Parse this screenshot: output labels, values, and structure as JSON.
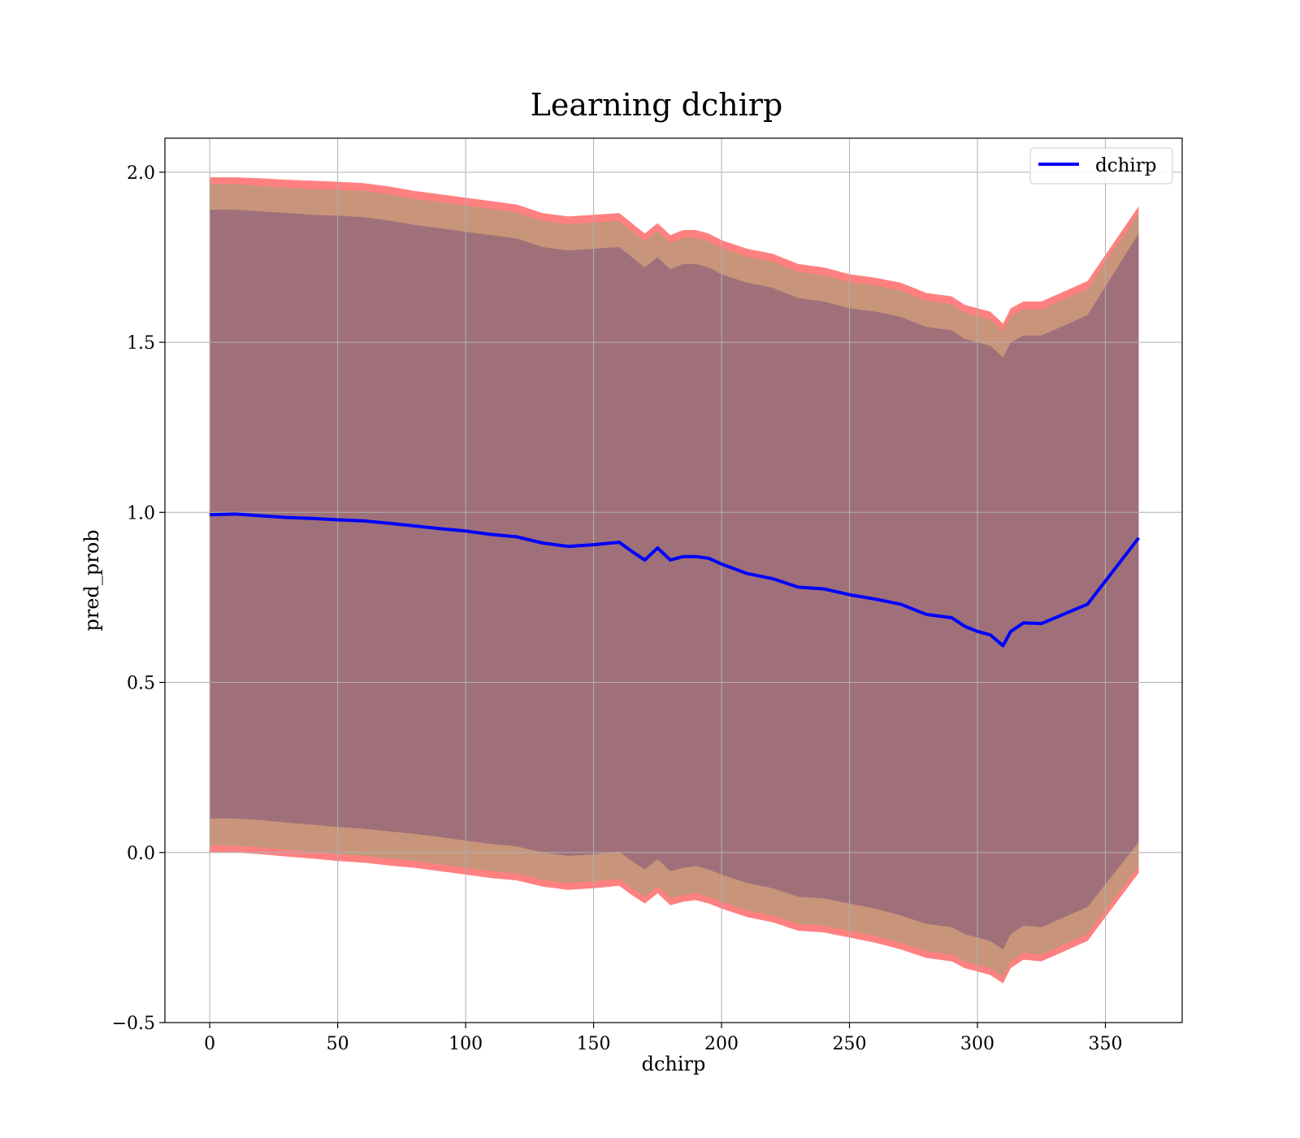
{
  "chart_data": {
    "type": "line",
    "title": "Learning dchirp",
    "xlabel": "dchirp",
    "ylabel": "pred_prob",
    "xlim": [
      -17.5,
      380
    ],
    "ylim": [
      -0.5,
      2.1
    ],
    "xticks": [
      0,
      50,
      100,
      150,
      200,
      250,
      300,
      350
    ],
    "yticks": [
      -0.5,
      0.0,
      0.5,
      1.0,
      1.5,
      2.0
    ],
    "xtick_labels": [
      "0",
      "50",
      "100",
      "150",
      "200",
      "250",
      "300",
      "350"
    ],
    "ytick_labels": [
      "−0.5",
      "0.0",
      "0.5",
      "1.0",
      "1.5",
      "2.0"
    ],
    "grid": true,
    "legend": {
      "placement": "top-right",
      "entries": [
        "dchirp"
      ]
    },
    "series": [
      {
        "name": "dchirp",
        "color": "#0000ff",
        "x": [
          0,
          10,
          20,
          30,
          40,
          50,
          60,
          70,
          80,
          90,
          100,
          110,
          120,
          130,
          140,
          150,
          160,
          165,
          170,
          175,
          180,
          185,
          190,
          195,
          200,
          210,
          220,
          230,
          240,
          250,
          260,
          270,
          280,
          290,
          295,
          300,
          305,
          310,
          313,
          318,
          325,
          343,
          363
        ],
        "y": [
          0.993,
          0.995,
          0.99,
          0.985,
          0.982,
          0.978,
          0.975,
          0.968,
          0.96,
          0.952,
          0.945,
          0.935,
          0.928,
          0.91,
          0.9,
          0.905,
          0.912,
          0.885,
          0.86,
          0.895,
          0.86,
          0.87,
          0.87,
          0.865,
          0.848,
          0.82,
          0.805,
          0.78,
          0.775,
          0.758,
          0.745,
          0.73,
          0.7,
          0.69,
          0.665,
          0.65,
          0.64,
          0.608,
          0.65,
          0.675,
          0.673,
          0.73,
          0.925
        ]
      }
    ],
    "bands": [
      {
        "name": "outer",
        "color": "#ff8080",
        "upper": [
          1.985,
          1.985,
          1.982,
          1.978,
          1.975,
          1.972,
          1.968,
          1.958,
          1.945,
          1.935,
          1.925,
          1.915,
          1.905,
          1.88,
          1.87,
          1.875,
          1.88,
          1.85,
          1.82,
          1.85,
          1.815,
          1.83,
          1.83,
          1.82,
          1.8,
          1.775,
          1.76,
          1.73,
          1.72,
          1.7,
          1.69,
          1.675,
          1.645,
          1.635,
          1.61,
          1.6,
          1.59,
          1.555,
          1.6,
          1.62,
          1.62,
          1.68,
          1.9
        ],
        "lower": [
          0.0,
          0.0,
          -0.005,
          -0.012,
          -0.018,
          -0.025,
          -0.03,
          -0.038,
          -0.045,
          -0.055,
          -0.065,
          -0.075,
          -0.082,
          -0.1,
          -0.11,
          -0.105,
          -0.098,
          -0.125,
          -0.15,
          -0.12,
          -0.155,
          -0.145,
          -0.14,
          -0.15,
          -0.165,
          -0.19,
          -0.205,
          -0.23,
          -0.235,
          -0.25,
          -0.265,
          -0.285,
          -0.31,
          -0.32,
          -0.34,
          -0.35,
          -0.36,
          -0.385,
          -0.34,
          -0.315,
          -0.32,
          -0.26,
          -0.06
        ]
      },
      {
        "name": "middle",
        "color": "#c8957a",
        "upper": [
          1.965,
          1.965,
          1.96,
          1.955,
          1.95,
          1.948,
          1.945,
          1.935,
          1.922,
          1.912,
          1.902,
          1.892,
          1.882,
          1.857,
          1.847,
          1.852,
          1.857,
          1.827,
          1.797,
          1.827,
          1.792,
          1.807,
          1.807,
          1.797,
          1.777,
          1.752,
          1.737,
          1.707,
          1.697,
          1.677,
          1.667,
          1.652,
          1.622,
          1.612,
          1.587,
          1.577,
          1.567,
          1.532,
          1.577,
          1.597,
          1.597,
          1.657,
          1.88
        ],
        "lower": [
          0.02,
          0.02,
          0.015,
          0.008,
          0.002,
          -0.005,
          -0.01,
          -0.018,
          -0.025,
          -0.035,
          -0.045,
          -0.055,
          -0.062,
          -0.08,
          -0.09,
          -0.085,
          -0.078,
          -0.105,
          -0.13,
          -0.1,
          -0.135,
          -0.125,
          -0.12,
          -0.13,
          -0.145,
          -0.17,
          -0.185,
          -0.21,
          -0.215,
          -0.23,
          -0.245,
          -0.265,
          -0.29,
          -0.3,
          -0.32,
          -0.33,
          -0.34,
          -0.365,
          -0.32,
          -0.295,
          -0.3,
          -0.24,
          -0.04
        ]
      },
      {
        "name": "inner",
        "color": "#a0707a",
        "upper": [
          1.89,
          1.89,
          1.885,
          1.88,
          1.875,
          1.872,
          1.868,
          1.858,
          1.845,
          1.835,
          1.825,
          1.815,
          1.805,
          1.78,
          1.77,
          1.775,
          1.78,
          1.75,
          1.72,
          1.75,
          1.715,
          1.73,
          1.73,
          1.72,
          1.7,
          1.675,
          1.66,
          1.63,
          1.62,
          1.6,
          1.59,
          1.575,
          1.545,
          1.535,
          1.51,
          1.5,
          1.49,
          1.455,
          1.5,
          1.52,
          1.52,
          1.58,
          1.82
        ],
        "lower": [
          0.1,
          0.1,
          0.095,
          0.088,
          0.082,
          0.075,
          0.07,
          0.062,
          0.055,
          0.045,
          0.035,
          0.025,
          0.018,
          0.0,
          -0.01,
          -0.005,
          0.002,
          -0.025,
          -0.05,
          -0.02,
          -0.055,
          -0.045,
          -0.04,
          -0.05,
          -0.065,
          -0.09,
          -0.105,
          -0.13,
          -0.135,
          -0.15,
          -0.165,
          -0.185,
          -0.21,
          -0.22,
          -0.24,
          -0.25,
          -0.26,
          -0.285,
          -0.24,
          -0.215,
          -0.22,
          -0.16,
          0.03
        ]
      }
    ]
  }
}
